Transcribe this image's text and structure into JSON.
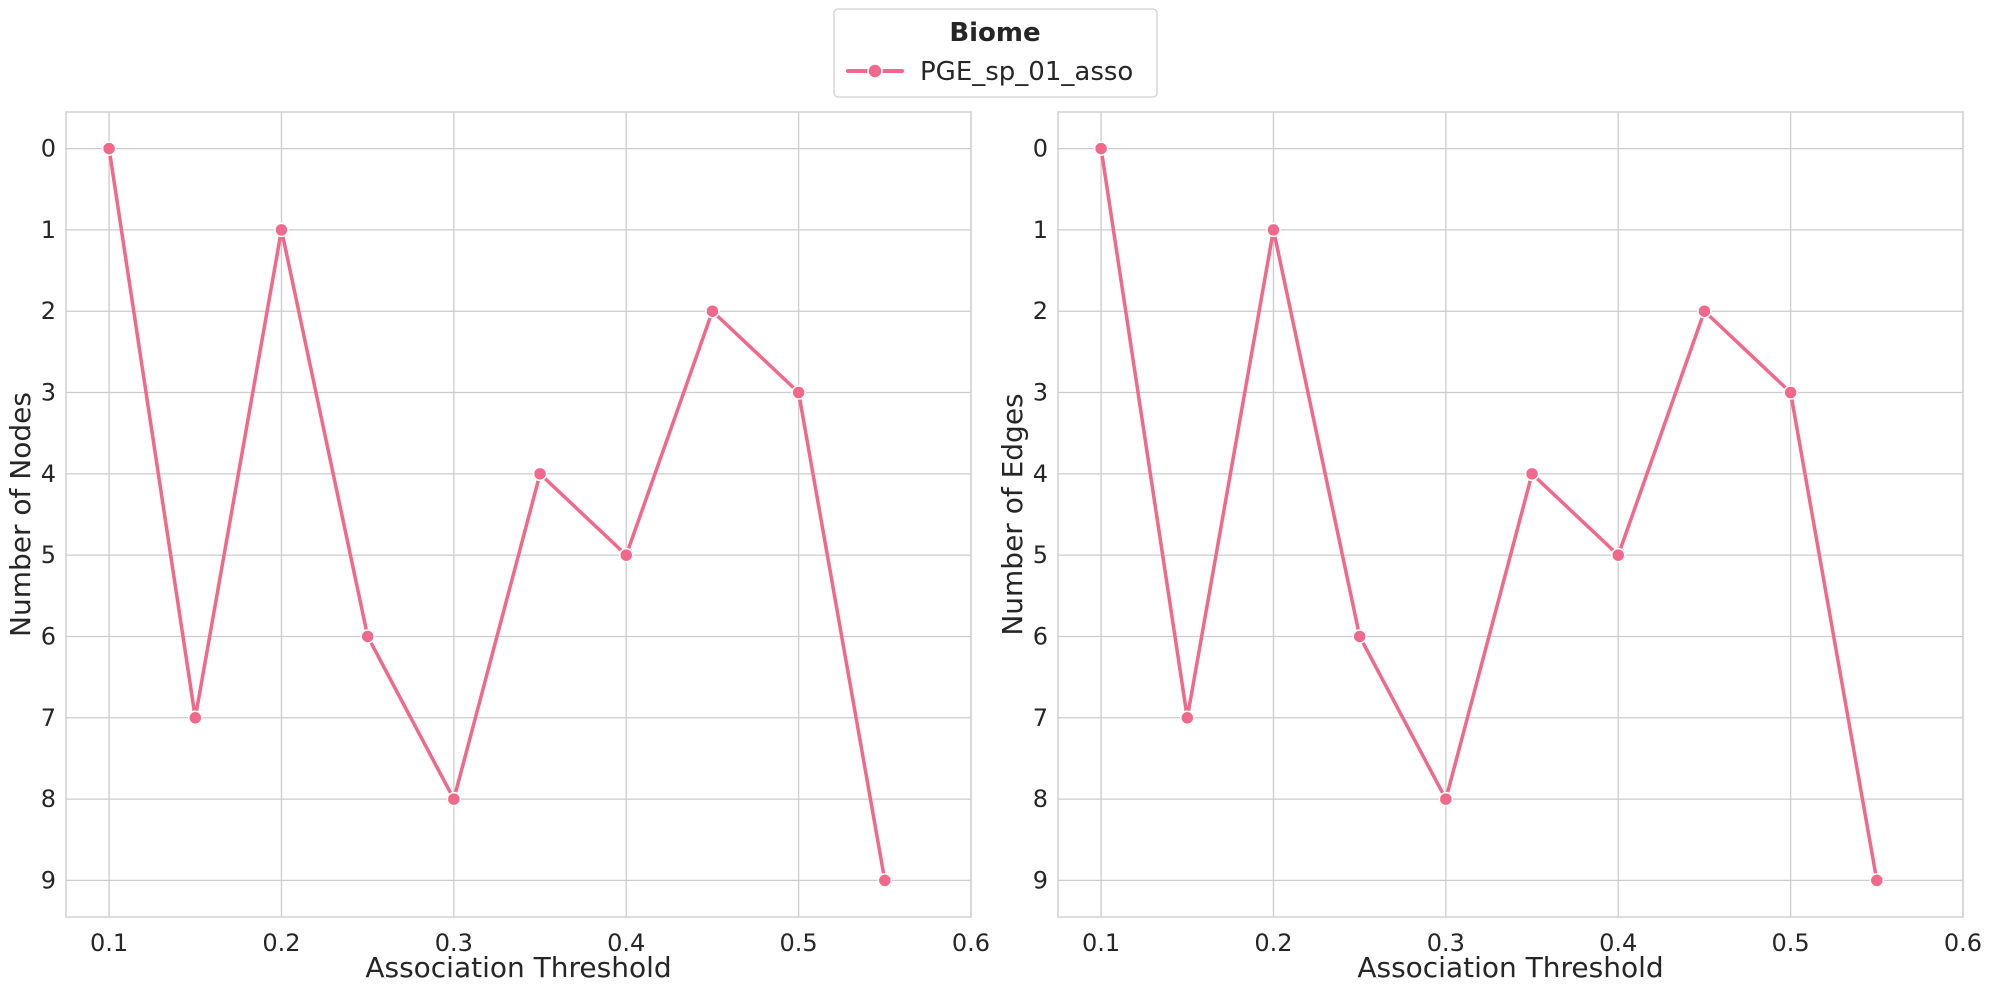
{
  "legend": {
    "title": "Biome",
    "entries": [
      "PGE_sp_01_asso"
    ],
    "placement": "top-center"
  },
  "colors": {
    "series": "#f0698a",
    "grid": "#cccccc",
    "axes_border": "#d0d0d0",
    "text": "#262626"
  },
  "chart_data": [
    {
      "type": "line",
      "xlabel": "Association Threshold",
      "ylabel": "Number of Nodes",
      "x": [
        0.1,
        0.15,
        0.2,
        0.25,
        0.3,
        0.35,
        0.4,
        0.45,
        0.5,
        0.55
      ],
      "series": [
        {
          "name": "PGE_sp_01_asso",
          "values": [
            0,
            7,
            1,
            6,
            8,
            4,
            5,
            2,
            3,
            9
          ]
        }
      ],
      "xlim": [
        0.075,
        0.6
      ],
      "ylim": [
        -0.45,
        9.45
      ],
      "y_inverted": true,
      "xticks": [
        0.1,
        0.2,
        0.3,
        0.4,
        0.5,
        0.6
      ],
      "xtick_labels": [
        "0.1",
        "0.2",
        "0.3",
        "0.4",
        "0.5",
        "0.6"
      ],
      "yticks": [
        0,
        1,
        2,
        3,
        4,
        5,
        6,
        7,
        8,
        9
      ],
      "ytick_labels": [
        "0",
        "1",
        "2",
        "3",
        "4",
        "5",
        "6",
        "7",
        "8",
        "9"
      ],
      "grid": true,
      "marker": "circle"
    },
    {
      "type": "line",
      "xlabel": "Association Threshold",
      "ylabel": "Number of Edges",
      "x": [
        0.1,
        0.15,
        0.2,
        0.25,
        0.3,
        0.35,
        0.4,
        0.45,
        0.5,
        0.55
      ],
      "series": [
        {
          "name": "PGE_sp_01_asso",
          "values": [
            0,
            7,
            1,
            6,
            8,
            4,
            5,
            2,
            3,
            9
          ]
        }
      ],
      "xlim": [
        0.075,
        0.6
      ],
      "ylim": [
        -0.45,
        9.45
      ],
      "y_inverted": true,
      "xticks": [
        0.1,
        0.2,
        0.3,
        0.4,
        0.5,
        0.6
      ],
      "xtick_labels": [
        "0.1",
        "0.2",
        "0.3",
        "0.4",
        "0.5",
        "0.6"
      ],
      "yticks": [
        0,
        1,
        2,
        3,
        4,
        5,
        6,
        7,
        8,
        9
      ],
      "ytick_labels": [
        "0",
        "1",
        "2",
        "3",
        "4",
        "5",
        "6",
        "7",
        "8",
        "9"
      ],
      "grid": true,
      "marker": "circle"
    }
  ]
}
